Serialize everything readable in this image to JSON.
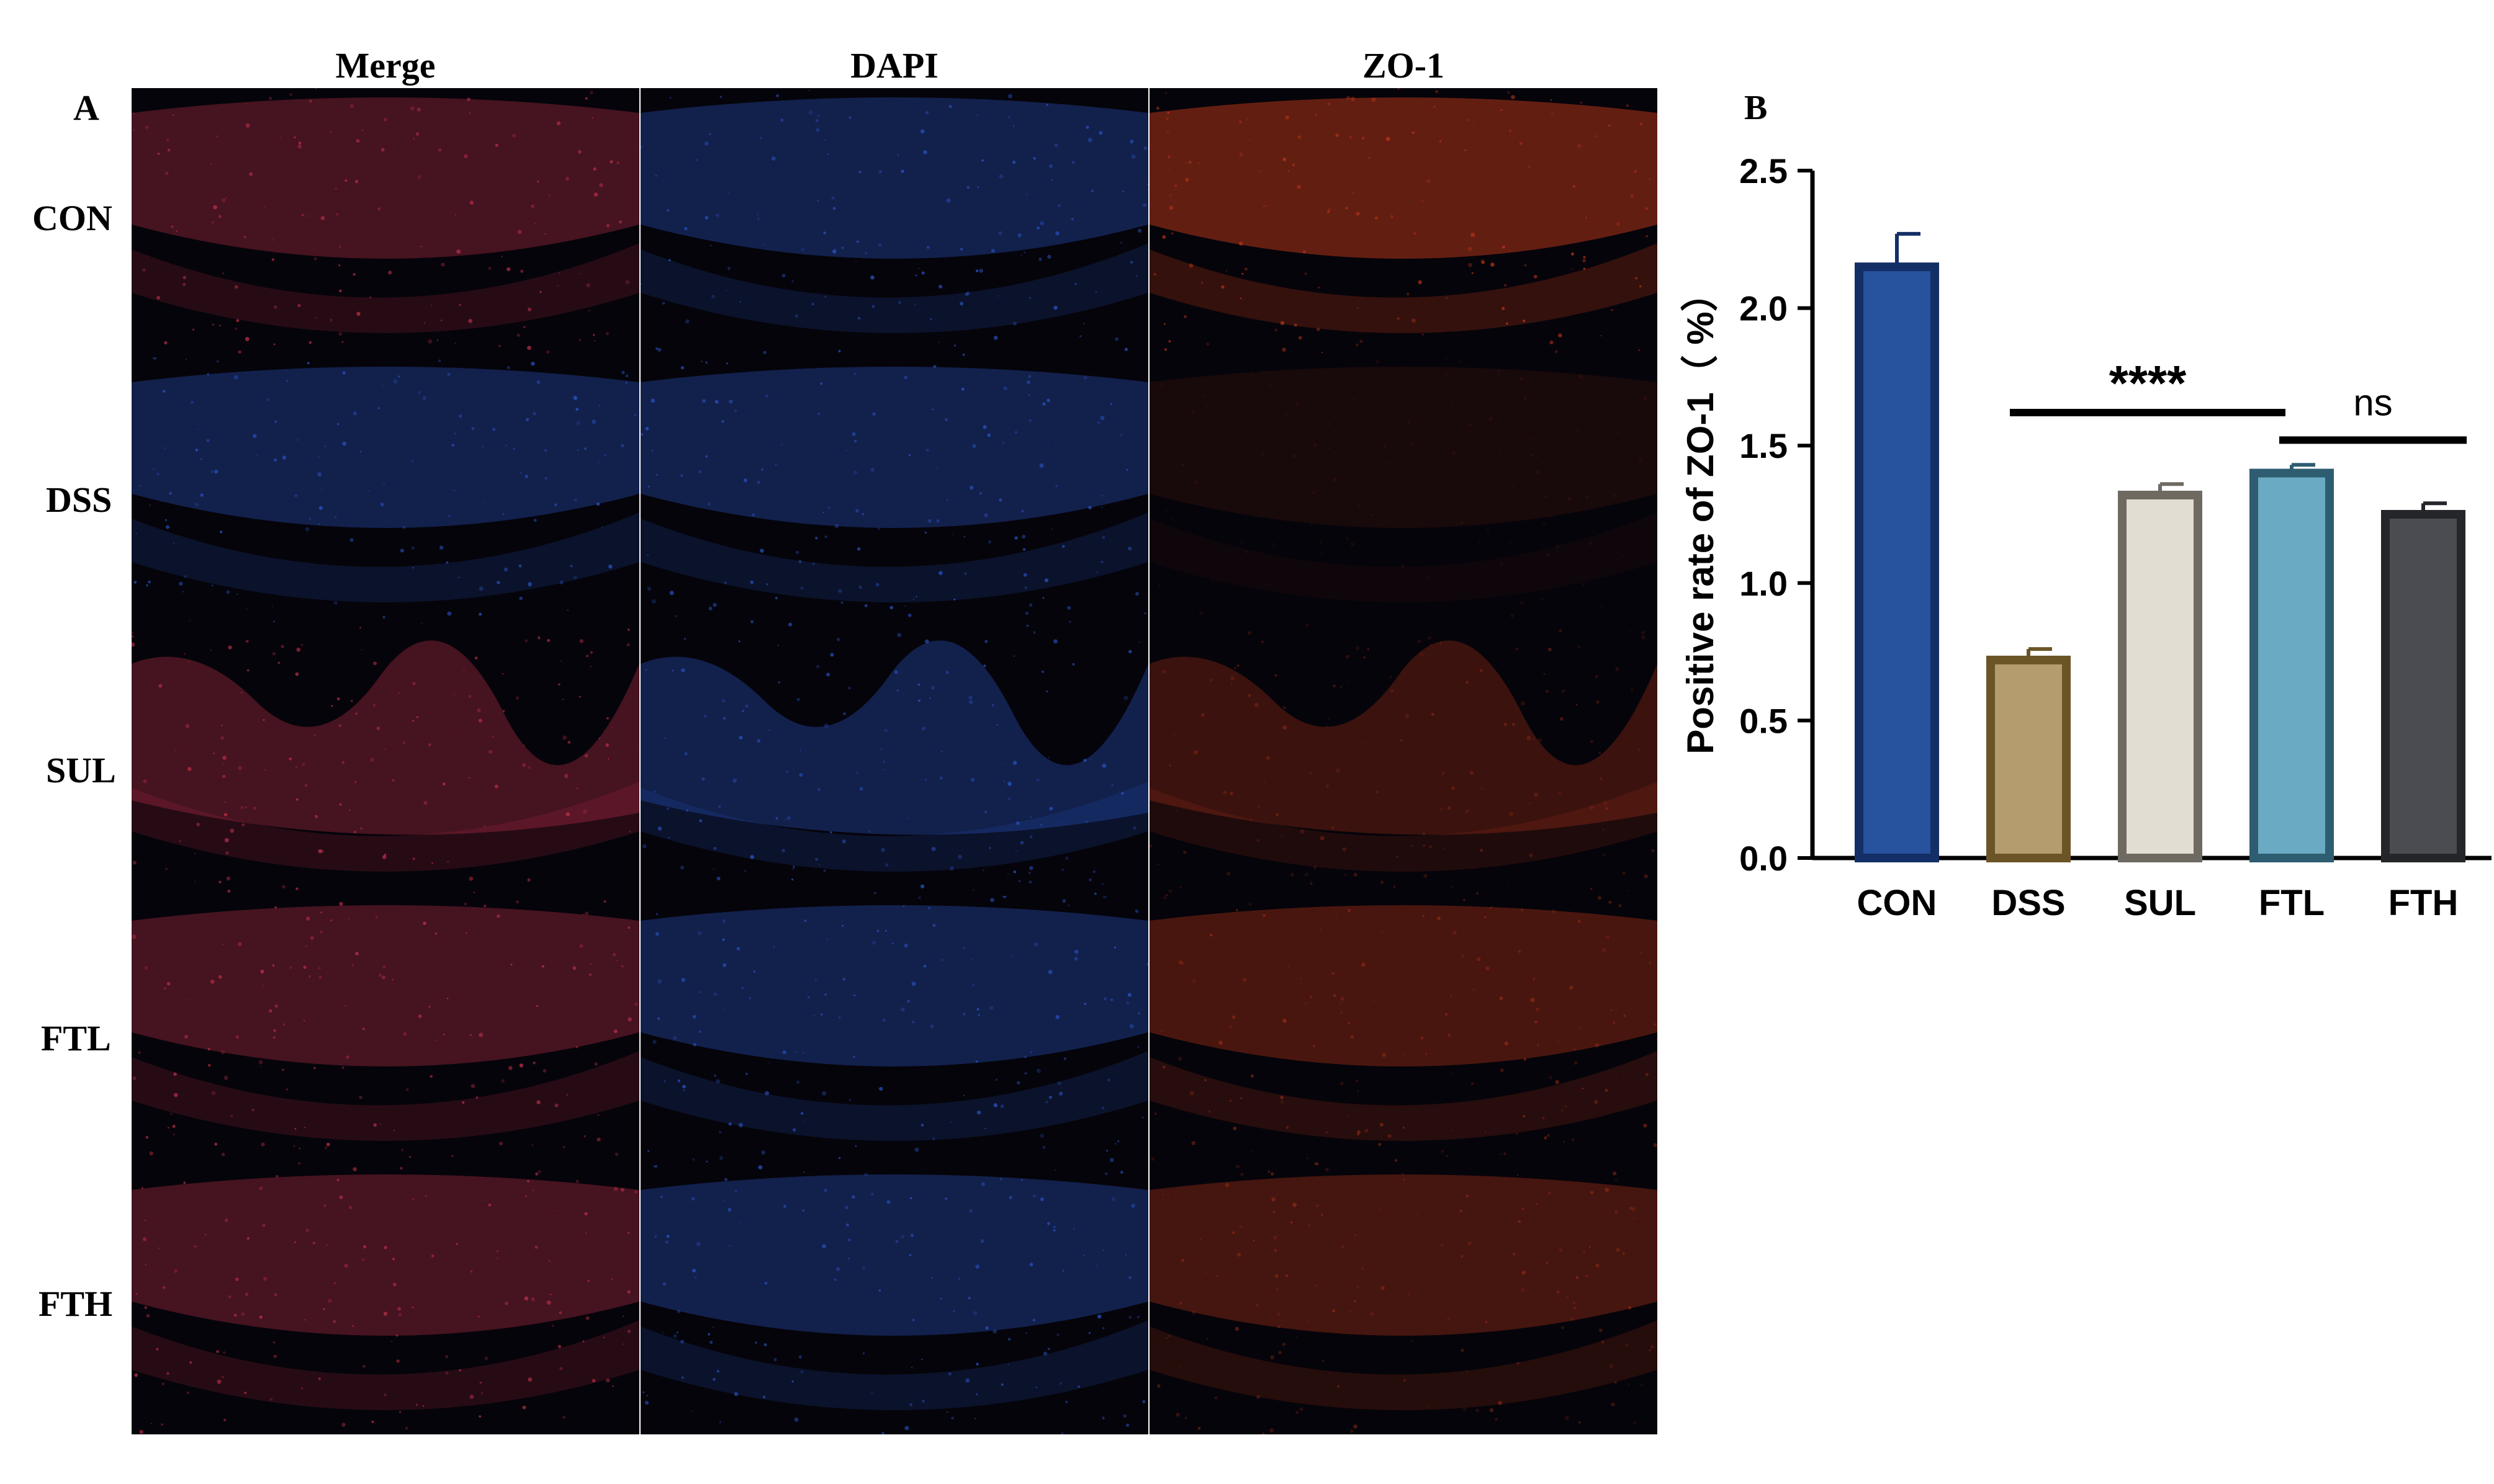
{
  "panel_a": {
    "letter": "A",
    "columns": [
      "Merge",
      "DAPI",
      "ZO-1"
    ],
    "rows": [
      "CON",
      "DSS",
      "SUL",
      "FTL",
      "FTH"
    ]
  },
  "panel_b": {
    "letter": "B"
  },
  "colors": {
    "merge_red": "#c0304a",
    "dapi_blue": "#2a55c8",
    "zo1_red": "#c83a1a",
    "background_dark": "#05040a"
  },
  "chart_data": {
    "type": "bar",
    "title": "",
    "xlabel": "",
    "ylabel": "Positive rate of ZO-1（ %）",
    "ylim": [
      0,
      2.5
    ],
    "yticks": [
      "0.0",
      "0.5",
      "1.0",
      "1.5",
      "2.0",
      "2.5"
    ],
    "categories": [
      "CON",
      "DSS",
      "SUL",
      "FTL",
      "FTH"
    ],
    "values": [
      2.15,
      0.72,
      1.32,
      1.4,
      1.25
    ],
    "errors": [
      0.12,
      0.04,
      0.04,
      0.03,
      0.04
    ],
    "bar_fill": [
      "#26529e",
      "#b49c6e",
      "#e2ddd3",
      "#6aaac2",
      "#4a4c52"
    ],
    "bar_stroke": [
      "#132f66",
      "#6b5526",
      "#6e6a62",
      "#2e5d72",
      "#25262a"
    ],
    "grid": false,
    "annotations": [
      {
        "text": "****",
        "from": "DSS",
        "to": "FTL",
        "y": 1.62
      },
      {
        "text": "ns",
        "from": "FTL",
        "to": "FTH",
        "y": 1.52
      }
    ]
  }
}
